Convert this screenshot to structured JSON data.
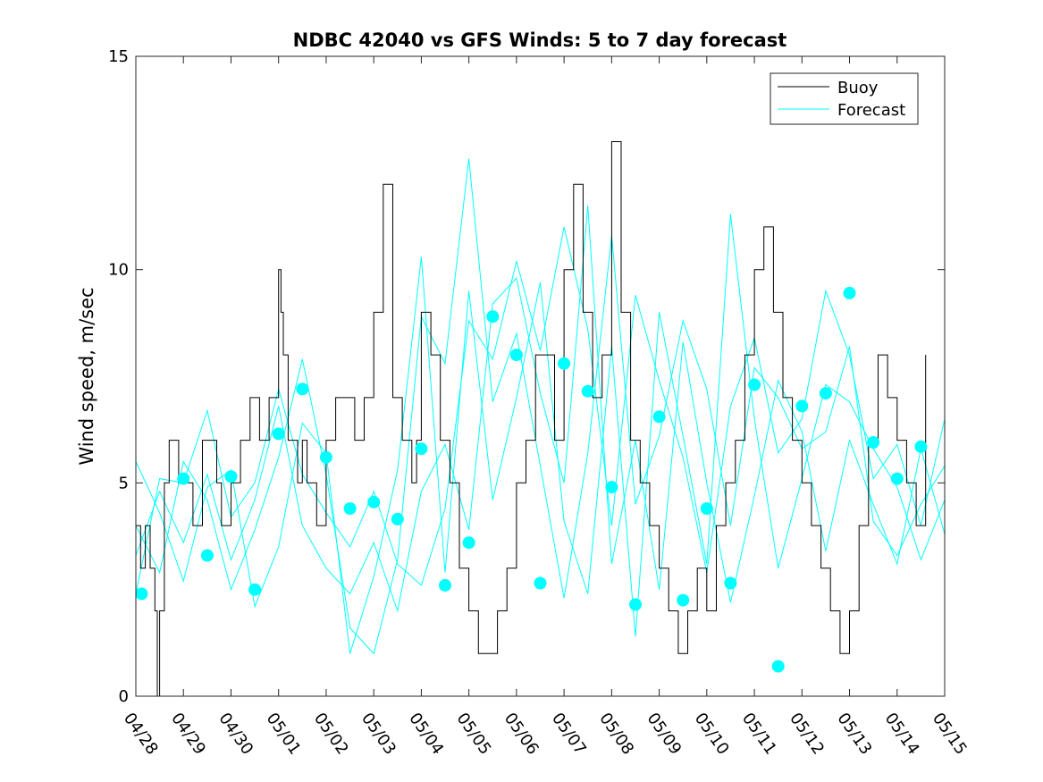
{
  "chart_data": {
    "type": "line",
    "title": "NDBC 42040 vs GFS Winds: 5 to 7 day forecast",
    "xlabel": "",
    "ylabel": "Wind speed, m/sec",
    "xlim": [
      "04/28",
      "05/15"
    ],
    "ylim": [
      0,
      15
    ],
    "x_tick_labels": [
      "04/28",
      "04/29",
      "04/30",
      "05/01",
      "05/02",
      "05/03",
      "05/04",
      "05/05",
      "05/06",
      "05/07",
      "05/08",
      "05/09",
      "05/10",
      "05/11",
      "05/12",
      "05/13",
      "05/14",
      "05/15"
    ],
    "y_ticks": [
      0,
      5,
      10,
      15
    ],
    "grid": false,
    "legend": {
      "placement": "top-right",
      "entries": [
        "Buoy",
        "Forecast"
      ]
    },
    "colors": {
      "buoy": "#000000",
      "forecast": "#00ffff"
    },
    "buoy": {
      "name": "Buoy",
      "x_day": [
        0,
        0.1,
        0.2,
        0.3,
        0.4,
        0.45,
        0.5,
        0.6,
        0.7,
        0.8,
        0.9,
        1.0,
        1.2,
        1.4,
        1.6,
        1.7,
        1.8,
        2.0,
        2.2,
        2.4,
        2.6,
        2.7,
        2.8,
        3.0,
        3.05,
        3.1,
        3.2,
        3.4,
        3.5,
        3.6,
        3.8,
        4.0,
        4.2,
        4.4,
        4.6,
        4.8,
        5.0,
        5.2,
        5.4,
        5.6,
        5.8,
        5.9,
        6.0,
        6.2,
        6.4,
        6.6,
        6.8,
        7.0,
        7.2,
        7.4,
        7.6,
        7.8,
        8.0,
        8.2,
        8.4,
        8.6,
        8.8,
        9.0,
        9.2,
        9.4,
        9.6,
        9.8,
        10.0,
        10.2,
        10.4,
        10.6,
        10.8,
        11.0,
        11.2,
        11.4,
        11.6,
        11.8,
        12.0,
        12.2,
        12.4,
        12.6,
        12.8,
        13.0,
        13.2,
        13.4,
        13.6,
        13.8,
        14.0,
        14.2,
        14.4,
        14.6,
        14.8,
        15.0,
        15.2,
        15.4,
        15.6,
        15.8,
        16.0,
        16.2,
        16.4,
        16.6
      ],
      "values": [
        4,
        3,
        4,
        3,
        2,
        0,
        2,
        5,
        6,
        6,
        5,
        5,
        4,
        6,
        6,
        5,
        4,
        5,
        6,
        7,
        6,
        6,
        7,
        10,
        9,
        8,
        6,
        5,
        6,
        5,
        4,
        6,
        7,
        7,
        6,
        7,
        9,
        12,
        7,
        6,
        5,
        6,
        9,
        8,
        6,
        5,
        3,
        2,
        1,
        1,
        2,
        3,
        5,
        6,
        8,
        8,
        6,
        10,
        12,
        9,
        7,
        8,
        13,
        9,
        6,
        5,
        4,
        3,
        2,
        1,
        2,
        3,
        2,
        4,
        5,
        6,
        8,
        10,
        11,
        9,
        7,
        6,
        5,
        4,
        3,
        2,
        1,
        2,
        4,
        6,
        8,
        7,
        6,
        5,
        4,
        8
      ]
    },
    "forecast_runs": [
      {
        "x_day": [
          0.0,
          0.5,
          1.0,
          1.5,
          2.0,
          2.5,
          3.0,
          3.5,
          4.0,
          4.5,
          5.0,
          5.5,
          6.0,
          6.5,
          7.0,
          7.5,
          8.0,
          8.5,
          9.0,
          9.5,
          10.0,
          10.5,
          11.0,
          11.5,
          12.0,
          12.5,
          13.0,
          13.5,
          14.0,
          14.5,
          15.0,
          15.5,
          16.0,
          16.5,
          17.0
        ],
        "values": [
          2.4,
          5.1,
          5.0,
          6.7,
          4.2,
          5.0,
          7.2,
          5.2,
          4.3,
          3.5,
          4.8,
          3.1,
          2.6,
          4.4,
          8.8,
          7.9,
          10.2,
          8.1,
          11.0,
          8.6,
          4.0,
          9.4,
          7.4,
          5.6,
          2.9,
          6.8,
          8.4,
          5.7,
          6.5,
          9.5,
          8.0,
          5.1,
          5.9,
          4.0,
          6.5
        ]
      },
      {
        "x_day": [
          0.0,
          0.5,
          1.0,
          1.5,
          2.0,
          2.5,
          3.0,
          3.5,
          4.0,
          4.5,
          5.0,
          5.5,
          6.0,
          6.5,
          7.0,
          7.5,
          8.0,
          8.5,
          9.0,
          9.5,
          10.0,
          10.5,
          11.0,
          11.5,
          12.0,
          12.5,
          13.0,
          13.5,
          14.0,
          14.5,
          15.0,
          15.5,
          16.0,
          16.5,
          17.0
        ],
        "values": [
          3.3,
          4.8,
          3.6,
          5.2,
          3.2,
          4.6,
          6.8,
          4.0,
          3.0,
          2.4,
          3.6,
          2.0,
          4.8,
          5.9,
          3.9,
          9.2,
          9.8,
          7.1,
          5.0,
          11.5,
          3.1,
          6.0,
          2.5,
          8.3,
          5.0,
          2.2,
          4.7,
          7.4,
          6.2,
          3.4,
          6.0,
          4.5,
          3.1,
          5.8,
          3.8
        ]
      },
      {
        "x_day": [
          0.0,
          0.5,
          1.0,
          1.5,
          2.0,
          2.5,
          3.0,
          3.5,
          4.0,
          4.5,
          5.0,
          5.5,
          6.0,
          6.5,
          7.0,
          7.5,
          8.0,
          8.5,
          9.0,
          9.5,
          10.0,
          10.5,
          11.0,
          11.5,
          12.0,
          12.5,
          13.0,
          13.5,
          14.0,
          14.5,
          15.0,
          15.5,
          16.0,
          16.5,
          17.0
        ],
        "values": [
          4.0,
          2.9,
          5.5,
          4.6,
          2.5,
          3.9,
          5.6,
          7.9,
          5.2,
          1.6,
          1.0,
          3.2,
          8.9,
          7.8,
          12.6,
          6.9,
          8.5,
          5.4,
          2.3,
          5.7,
          10.8,
          4.5,
          6.1,
          8.8,
          7.2,
          4.0,
          7.7,
          7.0,
          5.8,
          6.2,
          8.2,
          4.1,
          3.3,
          4.5,
          5.4
        ]
      },
      {
        "x_day": [
          0.0,
          0.5,
          1.0,
          1.5,
          2.0,
          2.5,
          3.0,
          3.5,
          4.0,
          4.5,
          5.0,
          5.5,
          6.0,
          6.5,
          7.0,
          7.5,
          8.0,
          8.5,
          9.0,
          9.5,
          10.0,
          10.5,
          11.0,
          11.5,
          12.0,
          12.5,
          13.0,
          13.5,
          14.0,
          14.5,
          15.0,
          15.5,
          16.0,
          16.5,
          17.0
        ],
        "values": [
          5.5,
          4.3,
          2.7,
          4.9,
          5.3,
          2.1,
          3.5,
          6.4,
          5.7,
          1.0,
          2.8,
          5.3,
          10.3,
          2.9,
          9.5,
          4.6,
          7.0,
          9.7,
          4.1,
          2.4,
          8.2,
          1.4,
          9.0,
          6.1,
          3.1,
          11.3,
          6.5,
          3.0,
          5.1,
          7.3,
          6.9,
          5.8,
          4.9,
          3.2,
          4.6
        ]
      }
    ],
    "forecast_markers": {
      "x_day": [
        0.12,
        1.0,
        1.5,
        2.0,
        2.5,
        3.0,
        3.5,
        4.0,
        4.5,
        5.0,
        5.5,
        6.0,
        6.5,
        7.0,
        7.5,
        8.0,
        8.5,
        9.0,
        9.5,
        10.0,
        10.5,
        11.0,
        11.5,
        12.0,
        12.5,
        13.0,
        13.5,
        14.0,
        14.5,
        15.0,
        15.5,
        16.0,
        16.5
      ],
      "values": [
        2.4,
        5.1,
        3.3,
        5.15,
        2.5,
        6.15,
        7.2,
        5.6,
        4.4,
        4.55,
        4.15,
        5.8,
        2.6,
        3.6,
        8.9,
        8.0,
        2.65,
        7.8,
        7.15,
        4.9,
        2.15,
        6.55,
        2.25,
        4.4,
        2.65,
        7.3,
        0.7,
        6.8,
        7.1,
        9.45,
        5.95,
        5.1,
        5.85
      ]
    }
  }
}
